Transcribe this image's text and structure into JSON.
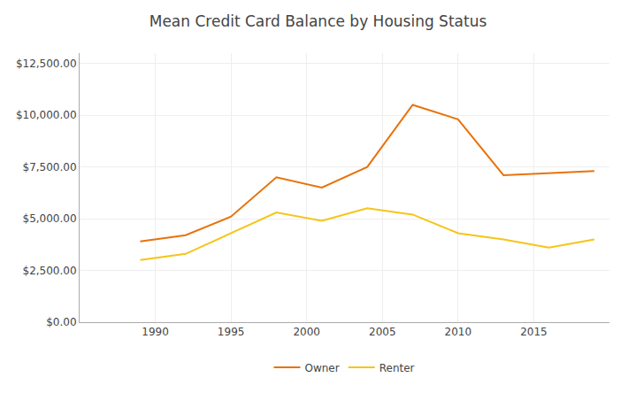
{
  "chart_data": {
    "type": "line",
    "title": "Mean Credit Card Balance by Housing Status",
    "x": [
      1989,
      1992,
      1995,
      1998,
      2001,
      2004,
      2007,
      2010,
      2013,
      2016,
      2019
    ],
    "series": [
      {
        "name": "Owner",
        "color": "#E8720C",
        "values": [
          3900,
          4200,
          5100,
          7000,
          6500,
          7500,
          10500,
          9800,
          7100,
          7200,
          7300
        ]
      },
      {
        "name": "Renter",
        "color": "#F5C518",
        "values": [
          3000,
          3300,
          4300,
          5300,
          4900,
          5500,
          5200,
          4300,
          4000,
          3600,
          4000
        ]
      }
    ],
    "xlim": [
      1985,
      2020
    ],
    "xticks": [
      1990,
      1995,
      2000,
      2005,
      2010,
      2015
    ],
    "ylim": [
      0,
      13000
    ],
    "yticks": [
      {
        "value": 0,
        "label": "$0.00"
      },
      {
        "value": 2500,
        "label": "$2,500.00"
      },
      {
        "value": 5000,
        "label": "$5,000.00"
      },
      {
        "value": 7500,
        "label": "$7,500.00"
      },
      {
        "value": 10000,
        "label": "$10,000.00"
      },
      {
        "value": 12500,
        "label": "$12,500.00"
      }
    ],
    "grid": true,
    "legend": "bottom"
  }
}
